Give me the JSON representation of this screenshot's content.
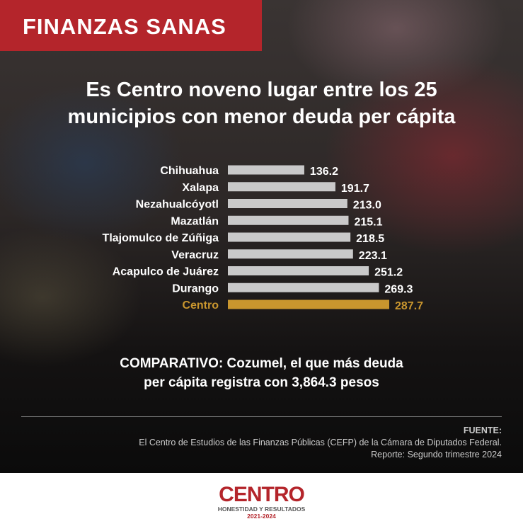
{
  "header": {
    "banner": "FINANZAS SANAS"
  },
  "chart_data": {
    "type": "bar",
    "orientation": "horizontal",
    "title": "Es Centro noveno lugar entre los 25 municipios con menor deuda per cápita",
    "title_lines": [
      "Es Centro noveno lugar entre los 25",
      "municipios con menor deuda per cápita"
    ],
    "categories": [
      "Chihuahua",
      "Xalapa",
      "Nezahualcóyotl",
      "Mazatlán",
      "Tlajomulco de Zúñiga",
      "Veracruz",
      "Acapulco de Juárez",
      "Durango",
      "Centro"
    ],
    "values": [
      136.2,
      191.7,
      213.0,
      215.1,
      218.5,
      223.1,
      251.2,
      269.3,
      287.7
    ],
    "labels": [
      "136.2",
      "191.7",
      "213.0",
      "215.1",
      "218.5",
      "223.1",
      "251.2",
      "269.3",
      "287.7"
    ],
    "highlight": "Centro",
    "colors": {
      "bar": "#c9c9c9",
      "highlight": "#c9962e"
    },
    "xlim": [
      0,
      300
    ],
    "grid": false
  },
  "comparativo": {
    "line1": "COMPARATIVO: Cozumel, el que más deuda",
    "line2": "per cápita registra con 3,864.3 pesos"
  },
  "source": {
    "label": "FUENTE:",
    "text": "El Centro de Estudios de las Finanzas Públicas (CEFP) de la Cámara de Diputados Federal.",
    "report": "Reporte: Segundo trimestre 2024"
  },
  "logo": {
    "name": "CENTRO",
    "tagline": "HONESTIDAD Y RESULTADOS",
    "years": "2021-2024"
  }
}
